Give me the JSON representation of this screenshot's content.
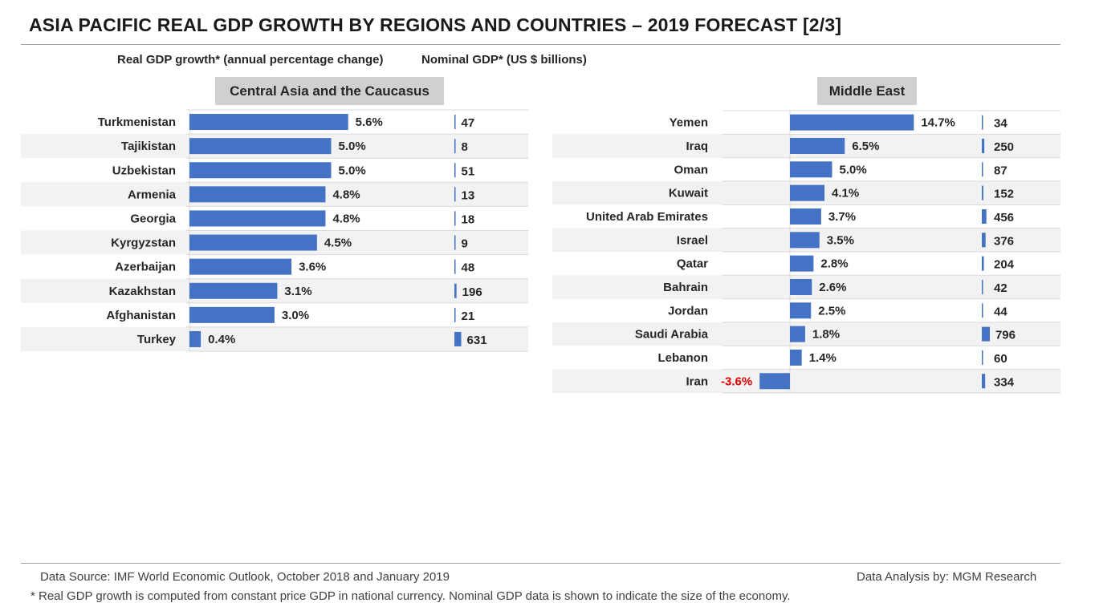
{
  "title": "ASIA PACIFIC REAL GDP GROWTH BY REGIONS AND COUNTRIES – 2019 FORECAST [2/3]",
  "column_labels": {
    "growth": "Real GDP growth* (annual percentage change)",
    "nominal": "Nominal GDP* (US $ billions)"
  },
  "colors": {
    "bar": "#4472c4",
    "negative_label": "#e00000",
    "stripe": "#f2f2f2",
    "grid": "#d9d9d9"
  },
  "chart_data": [
    {
      "type": "bar",
      "title": "Central Asia and the Caucasus",
      "categories": [
        "Turkmenistan",
        "Tajikistan",
        "Uzbekistan",
        "Armenia",
        "Georgia",
        "Kyrgyzstan",
        "Azerbaijan",
        "Kazakhstan",
        "Afghanistan",
        "Turkey"
      ],
      "series": [
        {
          "name": "Real GDP growth (%)",
          "values": [
            5.6,
            5.0,
            5.0,
            4.8,
            4.8,
            4.5,
            3.6,
            3.1,
            3.0,
            0.4
          ],
          "labels": [
            "5.6%",
            "5.0%",
            "5.0%",
            "4.8%",
            "4.8%",
            "4.5%",
            "3.6%",
            "3.1%",
            "3.0%",
            "0.4%"
          ]
        },
        {
          "name": "Nominal GDP (US $ billions)",
          "values": [
            47,
            8,
            51,
            13,
            18,
            9,
            48,
            196,
            21,
            631
          ],
          "labels": [
            "47",
            "8",
            "51",
            "13",
            "18",
            "9",
            "48",
            "196",
            "21",
            "631"
          ]
        }
      ]
    },
    {
      "type": "bar",
      "title": "Middle East",
      "categories": [
        "Yemen",
        "Iraq",
        "Oman",
        "Kuwait",
        "United Arab Emirates",
        "Israel",
        "Qatar",
        "Bahrain",
        "Jordan",
        "Saudi Arabia",
        "Lebanon",
        "Iran"
      ],
      "series": [
        {
          "name": "Real GDP growth (%)",
          "values": [
            14.7,
            6.5,
            5.0,
            4.1,
            3.7,
            3.5,
            2.8,
            2.6,
            2.5,
            1.8,
            1.4,
            -3.6
          ],
          "labels": [
            "14.7%",
            "6.5%",
            "5.0%",
            "4.1%",
            "3.7%",
            "3.5%",
            "2.8%",
            "2.6%",
            "2.5%",
            "1.8%",
            "1.4%",
            "-3.6%"
          ]
        },
        {
          "name": "Nominal GDP (US $ billions)",
          "values": [
            34,
            250,
            87,
            152,
            456,
            376,
            204,
            42,
            44,
            796,
            60,
            334
          ],
          "labels": [
            "34",
            "250",
            "87",
            "152",
            "456",
            "376",
            "204",
            "42",
            "44",
            "796",
            "60",
            "334"
          ]
        }
      ]
    }
  ],
  "footer": {
    "source": "Data Source: IMF World Economic Outlook, October 2018 and January 2019",
    "analysis": "Data Analysis by: MGM Research",
    "note": "* Real GDP growth is computed from constant price GDP in national currency. Nominal GDP data is shown to indicate the size of the economy."
  }
}
